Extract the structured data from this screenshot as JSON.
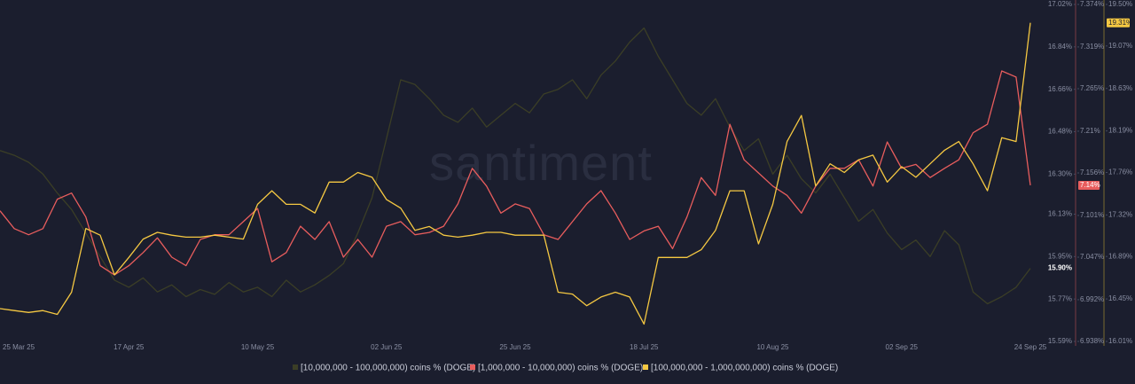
{
  "chart_data": {
    "type": "line",
    "watermark": "santiment",
    "categories": [
      "25 Mar 25",
      null,
      null,
      null,
      null,
      null,
      null,
      null,
      null,
      "17 Apr 25",
      null,
      null,
      null,
      null,
      null,
      null,
      null,
      null,
      "10 May 25",
      null,
      null,
      null,
      null,
      null,
      null,
      null,
      null,
      "02 Jun 25",
      null,
      null,
      null,
      null,
      null,
      null,
      null,
      null,
      "25 Jun 25",
      null,
      null,
      null,
      null,
      null,
      null,
      null,
      null,
      "18 Jul 25",
      null,
      null,
      null,
      null,
      null,
      null,
      null,
      null,
      "10 Aug 25",
      null,
      null,
      null,
      null,
      null,
      null,
      null,
      null,
      "02 Sep 25",
      null,
      null,
      null,
      null,
      null,
      null,
      null,
      null,
      "24 Sep 25"
    ],
    "series": [
      {
        "name": "[10,000,000 - 100,000,000) coins % (DOGE)",
        "color": "#3b3e26",
        "axis": "y",
        "last_label": "15.90%",
        "values": [
          16.4,
          16.38,
          16.35,
          16.3,
          16.22,
          16.15,
          16.05,
          15.95,
          15.85,
          15.82,
          15.86,
          15.8,
          15.83,
          15.78,
          15.81,
          15.79,
          15.84,
          15.8,
          15.82,
          15.78,
          15.85,
          15.8,
          15.83,
          15.87,
          15.92,
          16.05,
          16.2,
          16.45,
          16.7,
          16.68,
          16.62,
          16.55,
          16.52,
          16.58,
          16.5,
          16.55,
          16.6,
          16.56,
          16.64,
          16.66,
          16.7,
          16.62,
          16.72,
          16.78,
          16.86,
          16.92,
          16.8,
          16.7,
          16.6,
          16.55,
          16.62,
          16.5,
          16.4,
          16.45,
          16.3,
          16.38,
          16.28,
          16.22,
          16.3,
          16.2,
          16.1,
          16.15,
          16.05,
          15.98,
          16.02,
          15.95,
          16.06,
          16.0,
          15.8,
          15.75,
          15.78,
          15.82,
          15.9
        ]
      },
      {
        "name": "[1,000,000 - 10,000,000) coins % (DOGE)",
        "color": "#e85d5d",
        "axis": "y2",
        "last_label": "7.14%",
        "values": [
          7.107,
          7.084,
          7.076,
          7.084,
          7.122,
          7.13,
          7.099,
          7.036,
          7.024,
          7.036,
          7.053,
          7.072,
          7.047,
          7.036,
          7.07,
          7.076,
          7.076,
          7.093,
          7.11,
          7.041,
          7.053,
          7.087,
          7.07,
          7.093,
          7.047,
          7.07,
          7.047,
          7.087,
          7.093,
          7.076,
          7.079,
          7.087,
          7.116,
          7.162,
          7.139,
          7.104,
          7.116,
          7.11,
          7.076,
          7.07,
          7.093,
          7.116,
          7.133,
          7.104,
          7.07,
          7.081,
          7.087,
          7.058,
          7.099,
          7.15,
          7.127,
          7.219,
          7.173,
          7.156,
          7.139,
          7.127,
          7.104,
          7.139,
          7.162,
          7.162,
          7.173,
          7.139,
          7.196,
          7.162,
          7.167,
          7.15,
          7.162,
          7.173,
          7.208,
          7.219,
          7.288,
          7.28,
          7.14
        ]
      },
      {
        "name": "[100,000,000 - 1,000,000,000) coins % (DOGE)",
        "color": "#f5c842",
        "axis": "y3",
        "last_label": "19.31%",
        "values": [
          16.35,
          16.33,
          16.31,
          16.33,
          16.29,
          16.52,
          17.18,
          17.11,
          16.7,
          16.88,
          17.07,
          17.14,
          17.11,
          17.09,
          17.09,
          17.11,
          17.09,
          17.07,
          17.43,
          17.57,
          17.43,
          17.43,
          17.34,
          17.66,
          17.66,
          17.76,
          17.71,
          17.48,
          17.39,
          17.16,
          17.2,
          17.11,
          17.09,
          17.11,
          17.14,
          17.14,
          17.11,
          17.11,
          17.11,
          16.52,
          16.5,
          16.38,
          16.47,
          16.52,
          16.47,
          16.19,
          16.88,
          16.88,
          16.88,
          16.96,
          17.16,
          17.57,
          17.57,
          17.02,
          17.43,
          18.08,
          18.35,
          17.62,
          17.85,
          17.76,
          17.89,
          17.94,
          17.66,
          17.82,
          17.71,
          17.85,
          17.99,
          18.08,
          17.85,
          17.57,
          18.12,
          18.08,
          19.31
        ]
      }
    ],
    "ylim": [
      15.59,
      17.02
    ],
    "yticks": [
      {
        "value": 17.02,
        "label": "17.02%"
      },
      {
        "value": 16.84,
        "label": "16.84%"
      },
      {
        "value": 16.66,
        "label": "16.66%"
      },
      {
        "value": 16.48,
        "label": "16.48%"
      },
      {
        "value": 16.3,
        "label": "16.30%"
      },
      {
        "value": 16.13,
        "label": "16.13%"
      },
      {
        "value": 15.95,
        "label": "15.95%"
      },
      {
        "value": 15.77,
        "label": "15.77%"
      },
      {
        "value": 15.59,
        "label": "15.59%"
      }
    ],
    "y2lim": [
      6.938,
      7.374
    ],
    "y2ticks": [
      {
        "value": 7.374,
        "label": "7.374%"
      },
      {
        "value": 7.319,
        "label": "7.319%"
      },
      {
        "value": 7.265,
        "label": "7.265%"
      },
      {
        "value": 7.21,
        "label": "7.21%"
      },
      {
        "value": 7.156,
        "label": "7.156%"
      },
      {
        "value": 7.101,
        "label": "7.101%"
      },
      {
        "value": 7.047,
        "label": "7.047%"
      },
      {
        "value": 6.992,
        "label": "6.992%"
      },
      {
        "value": 6.938,
        "label": "6.938%"
      }
    ],
    "y3lim": [
      16.01,
      19.5
    ],
    "y3ticks": [
      {
        "value": 19.5,
        "label": "19.50%"
      },
      {
        "value": 19.07,
        "label": "19.07%"
      },
      {
        "value": 18.63,
        "label": "18.63%"
      },
      {
        "value": 18.19,
        "label": "18.19%"
      },
      {
        "value": 17.76,
        "label": "17.76%"
      },
      {
        "value": 17.32,
        "label": "17.32%"
      },
      {
        "value": 16.89,
        "label": "16.89%"
      },
      {
        "value": 16.45,
        "label": "16.45%"
      },
      {
        "value": 16.01,
        "label": "16.01%"
      }
    ]
  }
}
